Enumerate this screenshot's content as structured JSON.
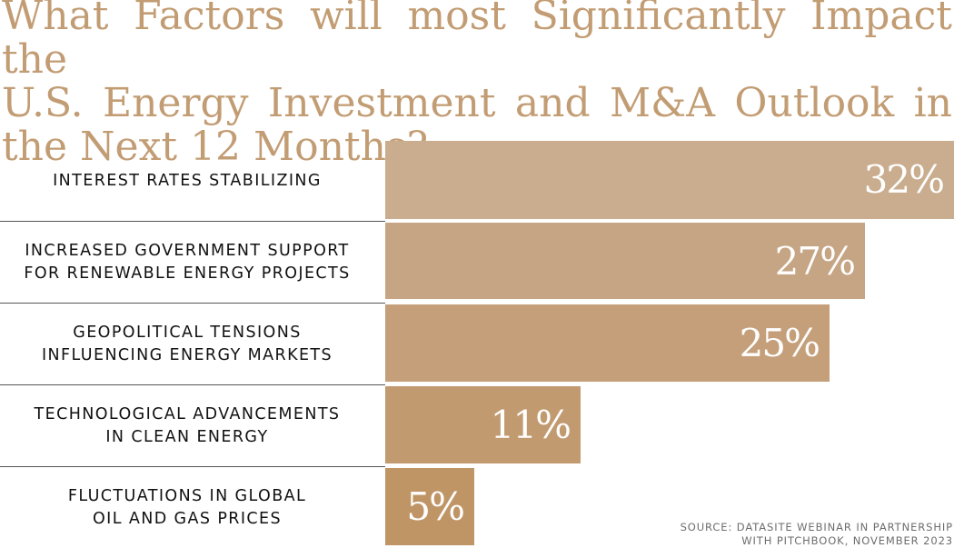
{
  "title_lines": [
    "What Factors will most Significantly Impact the",
    "U.S. Energy Investment and M&A Outlook in",
    "the Next 12 Months?"
  ],
  "source_lines": [
    "SOURCE: DATASITE WEBINAR IN PARTNERSHIP",
    "WITH PITCHBOOK, NOVEMBER 2023"
  ],
  "colors": {
    "title": "#c29c73",
    "bars": [
      "#c9ad8e",
      "#c6a584",
      "#c49f7a",
      "#c29a70",
      "#c09566"
    ],
    "value_text": "#ffffff",
    "label_text": "#111111",
    "divider": "#555555"
  },
  "chart_data": {
    "type": "bar",
    "orientation": "horizontal",
    "title": "What Factors will most Significantly Impact the U.S. Energy Investment and M&A Outlook in the Next 12 Months?",
    "categories": [
      "INTEREST RATES STABILIZING",
      "INCREASED GOVERNMENT SUPPORT\nFOR RENEWABLE ENERGY PROJECTS",
      "GEOPOLITICAL TENSIONS\nINFLUENCING ENERGY MARKETS",
      "TECHNOLOGICAL ADVANCEMENTS\nIN CLEAN ENERGY",
      "FLUCTUATIONS IN GLOBAL\nOIL AND GAS PRICES"
    ],
    "values": [
      32,
      27,
      25,
      11,
      5
    ],
    "value_labels": [
      "32%",
      "27%",
      "25%",
      "11%",
      "5%"
    ],
    "unit": "%",
    "xlim": [
      0,
      32
    ],
    "grid": false,
    "legend": "none"
  }
}
